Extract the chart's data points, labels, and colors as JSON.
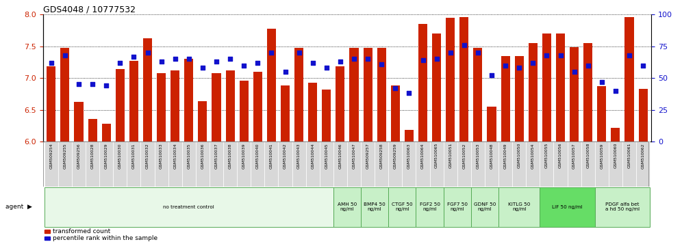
{
  "title": "GDS4048 / 10777532",
  "samples": [
    "GSM509254",
    "GSM509255",
    "GSM509256",
    "GSM510028",
    "GSM510029",
    "GSM510030",
    "GSM510031",
    "GSM510032",
    "GSM510033",
    "GSM510034",
    "GSM510035",
    "GSM510036",
    "GSM510037",
    "GSM510038",
    "GSM510039",
    "GSM510040",
    "GSM510041",
    "GSM510042",
    "GSM510043",
    "GSM510044",
    "GSM510045",
    "GSM510046",
    "GSM510047",
    "GSM509257",
    "GSM509258",
    "GSM509259",
    "GSM510063",
    "GSM510064",
    "GSM510065",
    "GSM510051",
    "GSM510052",
    "GSM510053",
    "GSM510048",
    "GSM510049",
    "GSM510050",
    "GSM510054",
    "GSM510055",
    "GSM510056",
    "GSM510057",
    "GSM510058",
    "GSM510059",
    "GSM510060",
    "GSM510061",
    "GSM510062"
  ],
  "bar_values": [
    7.18,
    7.48,
    6.63,
    6.36,
    6.28,
    7.14,
    7.27,
    7.63,
    7.08,
    7.12,
    7.3,
    6.64,
    7.08,
    7.12,
    6.96,
    7.1,
    7.78,
    6.88,
    7.48,
    6.93,
    6.82,
    7.18,
    7.48,
    7.48,
    7.48,
    6.88,
    6.18,
    7.85,
    7.7,
    7.95,
    7.96,
    7.48,
    6.55,
    7.35,
    7.35,
    7.55,
    7.7,
    7.7,
    7.49,
    7.55,
    6.87,
    6.22,
    7.96,
    6.83
  ],
  "percentile_values": [
    62,
    68,
    45,
    45,
    44,
    62,
    67,
    70,
    63,
    65,
    65,
    58,
    63,
    65,
    60,
    62,
    70,
    55,
    70,
    62,
    58,
    63,
    65,
    65,
    61,
    42,
    38,
    64,
    65,
    70,
    76,
    70,
    52,
    60,
    58,
    62,
    68,
    68,
    55,
    60,
    47,
    40,
    68,
    60
  ],
  "agents": [
    {
      "label": "no treatment control",
      "start": 0,
      "end": 21,
      "color": "#e8f8e8"
    },
    {
      "label": "AMH 50\nng/ml",
      "start": 21,
      "end": 23,
      "color": "#c8f0c8"
    },
    {
      "label": "BMP4 50\nng/ml",
      "start": 23,
      "end": 25,
      "color": "#c8f0c8"
    },
    {
      "label": "CTGF 50\nng/ml",
      "start": 25,
      "end": 27,
      "color": "#c8f0c8"
    },
    {
      "label": "FGF2 50\nng/ml",
      "start": 27,
      "end": 29,
      "color": "#c8f0c8"
    },
    {
      "label": "FGF7 50\nng/ml",
      "start": 29,
      "end": 31,
      "color": "#c8f0c8"
    },
    {
      "label": "GDNF 50\nng/ml",
      "start": 31,
      "end": 33,
      "color": "#c8f0c8"
    },
    {
      "label": "KITLG 50\nng/ml",
      "start": 33,
      "end": 36,
      "color": "#c8f0c8"
    },
    {
      "label": "LIF 50 ng/ml",
      "start": 36,
      "end": 40,
      "color": "#66dd66"
    },
    {
      "label": "PDGF alfa bet\na hd 50 ng/ml",
      "start": 40,
      "end": 44,
      "color": "#c8f0c8"
    }
  ],
  "ylim_left": [
    6.0,
    8.0
  ],
  "ylim_right": [
    0,
    100
  ],
  "yticks_left": [
    6.0,
    6.5,
    7.0,
    7.5,
    8.0
  ],
  "yticks_right": [
    0,
    25,
    50,
    75,
    100
  ],
  "bar_color": "#cc2200",
  "marker_color": "#1111cc",
  "title_fontsize": 9,
  "background_color": "#ffffff"
}
